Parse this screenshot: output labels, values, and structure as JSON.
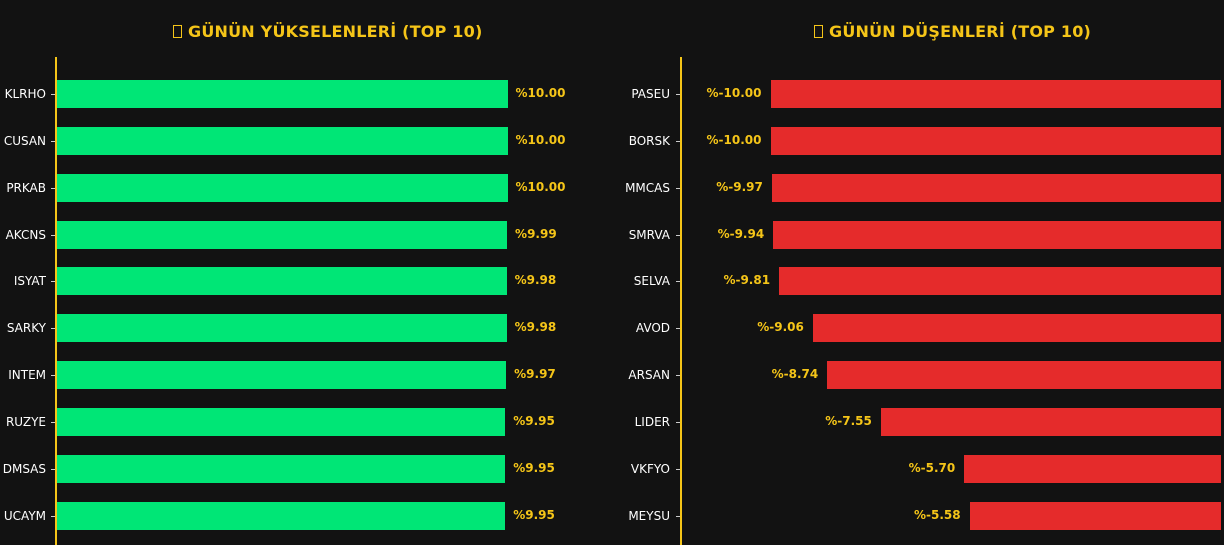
{
  "left": {
    "title": "GÜNÜN YÜKSELENLERİ (TOP 10)",
    "icon": "chart-up-icon",
    "items": [
      {
        "ticker": "KLRHO",
        "value": 10.0,
        "label": "%10.00"
      },
      {
        "ticker": "CUSAN",
        "value": 10.0,
        "label": "%10.00"
      },
      {
        "ticker": "PRKAB",
        "value": 10.0,
        "label": "%10.00"
      },
      {
        "ticker": "AKCNS",
        "value": 9.99,
        "label": "%9.99"
      },
      {
        "ticker": "ISYAT",
        "value": 9.98,
        "label": "%9.98"
      },
      {
        "ticker": "SARKY",
        "value": 9.98,
        "label": "%9.98"
      },
      {
        "ticker": "INTEM",
        "value": 9.97,
        "label": "%9.97"
      },
      {
        "ticker": "RUZYE",
        "value": 9.95,
        "label": "%9.95"
      },
      {
        "ticker": "DMSAS",
        "value": 9.95,
        "label": "%9.95"
      },
      {
        "ticker": "UCAYM",
        "value": 9.95,
        "label": "%9.95"
      }
    ]
  },
  "right": {
    "title": "GÜNÜN DÜŞENLERİ (TOP 10)",
    "icon": "chart-down-icon",
    "items": [
      {
        "ticker": "PASEU",
        "value": -10.0,
        "label": "%-10.00"
      },
      {
        "ticker": "BORSK",
        "value": -10.0,
        "label": "%-10.00"
      },
      {
        "ticker": "MMCAS",
        "value": -9.97,
        "label": "%-9.97"
      },
      {
        "ticker": "SMRVA",
        "value": -9.94,
        "label": "%-9.94"
      },
      {
        "ticker": "SELVA",
        "value": -9.81,
        "label": "%-9.81"
      },
      {
        "ticker": "AVOD",
        "value": -9.06,
        "label": "%-9.06"
      },
      {
        "ticker": "ARSAN",
        "value": -8.74,
        "label": "%-8.74"
      },
      {
        "ticker": "LIDER",
        "value": -7.55,
        "label": "%-7.55"
      },
      {
        "ticker": "VKFYO",
        "value": -5.7,
        "label": "%-5.70"
      },
      {
        "ticker": "MEYSU",
        "value": -5.58,
        "label": "%-5.58"
      }
    ]
  },
  "colors": {
    "background": "#121212",
    "accent": "#f5c518",
    "up": "#00e676",
    "down": "#e52b2b",
    "label": "#ffffff"
  },
  "chart_data": [
    {
      "type": "bar",
      "orientation": "horizontal",
      "title": "GÜNÜN YÜKSELENLERİ (TOP 10)",
      "categories": [
        "KLRHO",
        "CUSAN",
        "PRKAB",
        "AKCNS",
        "ISYAT",
        "SARKY",
        "INTEM",
        "RUZYE",
        "DMSAS",
        "UCAYM"
      ],
      "values": [
        10.0,
        10.0,
        10.0,
        9.99,
        9.98,
        9.98,
        9.97,
        9.95,
        9.95,
        9.95
      ],
      "data_labels": [
        "%10.00",
        "%10.00",
        "%10.00",
        "%9.99",
        "%9.98",
        "%9.98",
        "%9.97",
        "%9.95",
        "%9.95",
        "%9.95"
      ],
      "xlabel": "",
      "ylabel": "",
      "grid": false,
      "color": "#00e676"
    },
    {
      "type": "bar",
      "orientation": "horizontal",
      "title": "GÜNÜN DÜŞENLERİ (TOP 10)",
      "categories": [
        "PASEU",
        "BORSK",
        "MMCAS",
        "SMRVA",
        "SELVA",
        "AVOD",
        "ARSAN",
        "LIDER",
        "VKFYO",
        "MEYSU"
      ],
      "values": [
        -10.0,
        -10.0,
        -9.97,
        -9.94,
        -9.81,
        -9.06,
        -8.74,
        -7.55,
        -5.7,
        -5.58
      ],
      "data_labels": [
        "%-10.00",
        "%-10.00",
        "%-9.97",
        "%-9.94",
        "%-9.81",
        "%-9.06",
        "%-8.74",
        "%-7.55",
        "%-5.70",
        "%-5.58"
      ],
      "xlabel": "",
      "ylabel": "",
      "grid": false,
      "color": "#e52b2b"
    }
  ]
}
